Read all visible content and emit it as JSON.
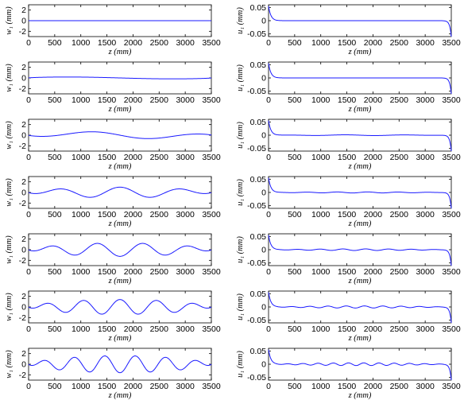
{
  "chart_data": [
    {
      "type": "line",
      "xlabel": "z (mm)",
      "ylabel": "w₁ (mm)",
      "xlim": [
        0,
        3500
      ],
      "ylim": [
        -3,
        3
      ],
      "xticks": [
        0,
        500,
        1000,
        1500,
        2000,
        2500,
        3000,
        3500
      ],
      "yticks": [
        -2,
        0,
        2
      ],
      "line_color": "#1a1aff",
      "shape": "wave",
      "amplitude": 0,
      "half_periods": 1
    },
    {
      "type": "line",
      "xlabel": "z (mm)",
      "ylabel": "u₁ (mm)",
      "xlim": [
        0,
        3500
      ],
      "ylim": [
        -0.06,
        0.06
      ],
      "xticks": [
        0,
        500,
        1000,
        1500,
        2000,
        2500,
        3000,
        3500
      ],
      "yticks": [
        -0.05,
        0,
        0.05
      ],
      "line_color": "#1a1aff",
      "shape": "edge",
      "ripple": 0,
      "ripple_half_periods": 0
    },
    {
      "type": "line",
      "xlabel": "z (mm)",
      "ylabel": "w₁ (mm)",
      "xlim": [
        0,
        3500
      ],
      "ylim": [
        -3,
        3
      ],
      "xticks": [
        0,
        500,
        1000,
        1500,
        2000,
        2500,
        3000,
        3500
      ],
      "yticks": [
        -2,
        0,
        2
      ],
      "line_color": "#1a1aff",
      "shape": "wave",
      "amplitude": 0.3,
      "half_periods": 1
    },
    {
      "type": "line",
      "xlabel": "z (mm)",
      "ylabel": "u₁ (mm)",
      "xlim": [
        0,
        3500
      ],
      "ylim": [
        -0.06,
        0.06
      ],
      "xticks": [
        0,
        500,
        1000,
        1500,
        2000,
        2500,
        3000,
        3500
      ],
      "yticks": [
        -0.05,
        0,
        0.05
      ],
      "line_color": "#1a1aff",
      "shape": "edge",
      "ripple": 0,
      "ripple_half_periods": 0
    },
    {
      "type": "line",
      "xlabel": "z (mm)",
      "ylabel": "w₁ (mm)",
      "xlim": [
        0,
        3500
      ],
      "ylim": [
        -3,
        3
      ],
      "xticks": [
        0,
        500,
        1000,
        1500,
        2000,
        2500,
        3000,
        3500
      ],
      "yticks": [
        -2,
        0,
        2
      ],
      "line_color": "#1a1aff",
      "shape": "wave",
      "amplitude": 0.7,
      "half_periods": 3
    },
    {
      "type": "line",
      "xlabel": "z (mm)",
      "ylabel": "u₁ (mm)",
      "xlim": [
        0,
        3500
      ],
      "ylim": [
        -0.06,
        0.06
      ],
      "xticks": [
        0,
        500,
        1000,
        1500,
        2000,
        2500,
        3000,
        3500
      ],
      "yticks": [
        -0.05,
        0,
        0.05
      ],
      "line_color": "#1a1aff",
      "shape": "edge",
      "ripple": 0.0015,
      "ripple_half_periods": 3
    },
    {
      "type": "line",
      "xlabel": "z (mm)",
      "ylabel": "w₁ (mm)",
      "xlim": [
        0,
        3500
      ],
      "ylim": [
        -3,
        3
      ],
      "xticks": [
        0,
        500,
        1000,
        1500,
        2000,
        2500,
        3000,
        3500
      ],
      "yticks": [
        -2,
        0,
        2
      ],
      "line_color": "#1a1aff",
      "shape": "wave",
      "amplitude": 1.0,
      "half_periods": 6
    },
    {
      "type": "line",
      "xlabel": "z (mm)",
      "ylabel": "u₁ (mm)",
      "xlim": [
        0,
        3500
      ],
      "ylim": [
        -0.06,
        0.06
      ],
      "xticks": [
        0,
        500,
        1000,
        1500,
        2000,
        2500,
        3000,
        3500
      ],
      "yticks": [
        -0.05,
        0,
        0.05
      ],
      "line_color": "#1a1aff",
      "shape": "edge",
      "ripple": 0.002,
      "ripple_half_periods": 6
    },
    {
      "type": "line",
      "xlabel": "z (mm)",
      "ylabel": "w₁ (mm)",
      "xlim": [
        0,
        3500
      ],
      "ylim": [
        -3,
        3
      ],
      "xticks": [
        0,
        500,
        1000,
        1500,
        2000,
        2500,
        3000,
        3500
      ],
      "yticks": [
        -2,
        0,
        2
      ],
      "line_color": "#1a1aff",
      "shape": "wave",
      "amplitude": 1.25,
      "half_periods": 8
    },
    {
      "type": "line",
      "xlabel": "z (mm)",
      "ylabel": "u₁ (mm)",
      "xlim": [
        0,
        3500
      ],
      "ylim": [
        -0.06,
        0.06
      ],
      "xticks": [
        0,
        500,
        1000,
        1500,
        2000,
        2500,
        3000,
        3500
      ],
      "yticks": [
        -0.05,
        0,
        0.05
      ],
      "line_color": "#1a1aff",
      "shape": "edge",
      "ripple": 0.003,
      "ripple_half_periods": 8
    },
    {
      "type": "line",
      "xlabel": "z (mm)",
      "ylabel": "w₁ (mm)",
      "xlim": [
        0,
        3500
      ],
      "ylim": [
        -3,
        3
      ],
      "xticks": [
        0,
        500,
        1000,
        1500,
        2000,
        2500,
        3000,
        3500
      ],
      "yticks": [
        -2,
        0,
        2
      ],
      "line_color": "#1a1aff",
      "shape": "wave",
      "amplitude": 1.4,
      "half_periods": 10
    },
    {
      "type": "line",
      "xlabel": "z (mm)",
      "ylabel": "u₁ (mm)",
      "xlim": [
        0,
        3500
      ],
      "ylim": [
        -0.06,
        0.06
      ],
      "xticks": [
        0,
        500,
        1000,
        1500,
        2000,
        2500,
        3000,
        3500
      ],
      "yticks": [
        -0.05,
        0,
        0.05
      ],
      "line_color": "#1a1aff",
      "shape": "edge",
      "ripple": 0.004,
      "ripple_half_periods": 10
    },
    {
      "type": "line",
      "xlabel": "z (mm)",
      "ylabel": "w₁ (mm)",
      "xlim": [
        0,
        3500
      ],
      "ylim": [
        -3,
        3
      ],
      "xticks": [
        0,
        500,
        1000,
        1500,
        2000,
        2500,
        3000,
        3500
      ],
      "yticks": [
        -2,
        0,
        2
      ],
      "line_color": "#1a1aff",
      "shape": "wave",
      "amplitude": 1.6,
      "half_periods": 12
    },
    {
      "type": "line",
      "xlabel": "z (mm)",
      "ylabel": "u₁ (mm)",
      "xlim": [
        0,
        3500
      ],
      "ylim": [
        -0.06,
        0.06
      ],
      "xticks": [
        0,
        500,
        1000,
        1500,
        2000,
        2500,
        3000,
        3500
      ],
      "yticks": [
        -0.05,
        0,
        0.05
      ],
      "line_color": "#1a1aff",
      "shape": "edge",
      "ripple": 0.005,
      "ripple_half_periods": 12
    }
  ]
}
